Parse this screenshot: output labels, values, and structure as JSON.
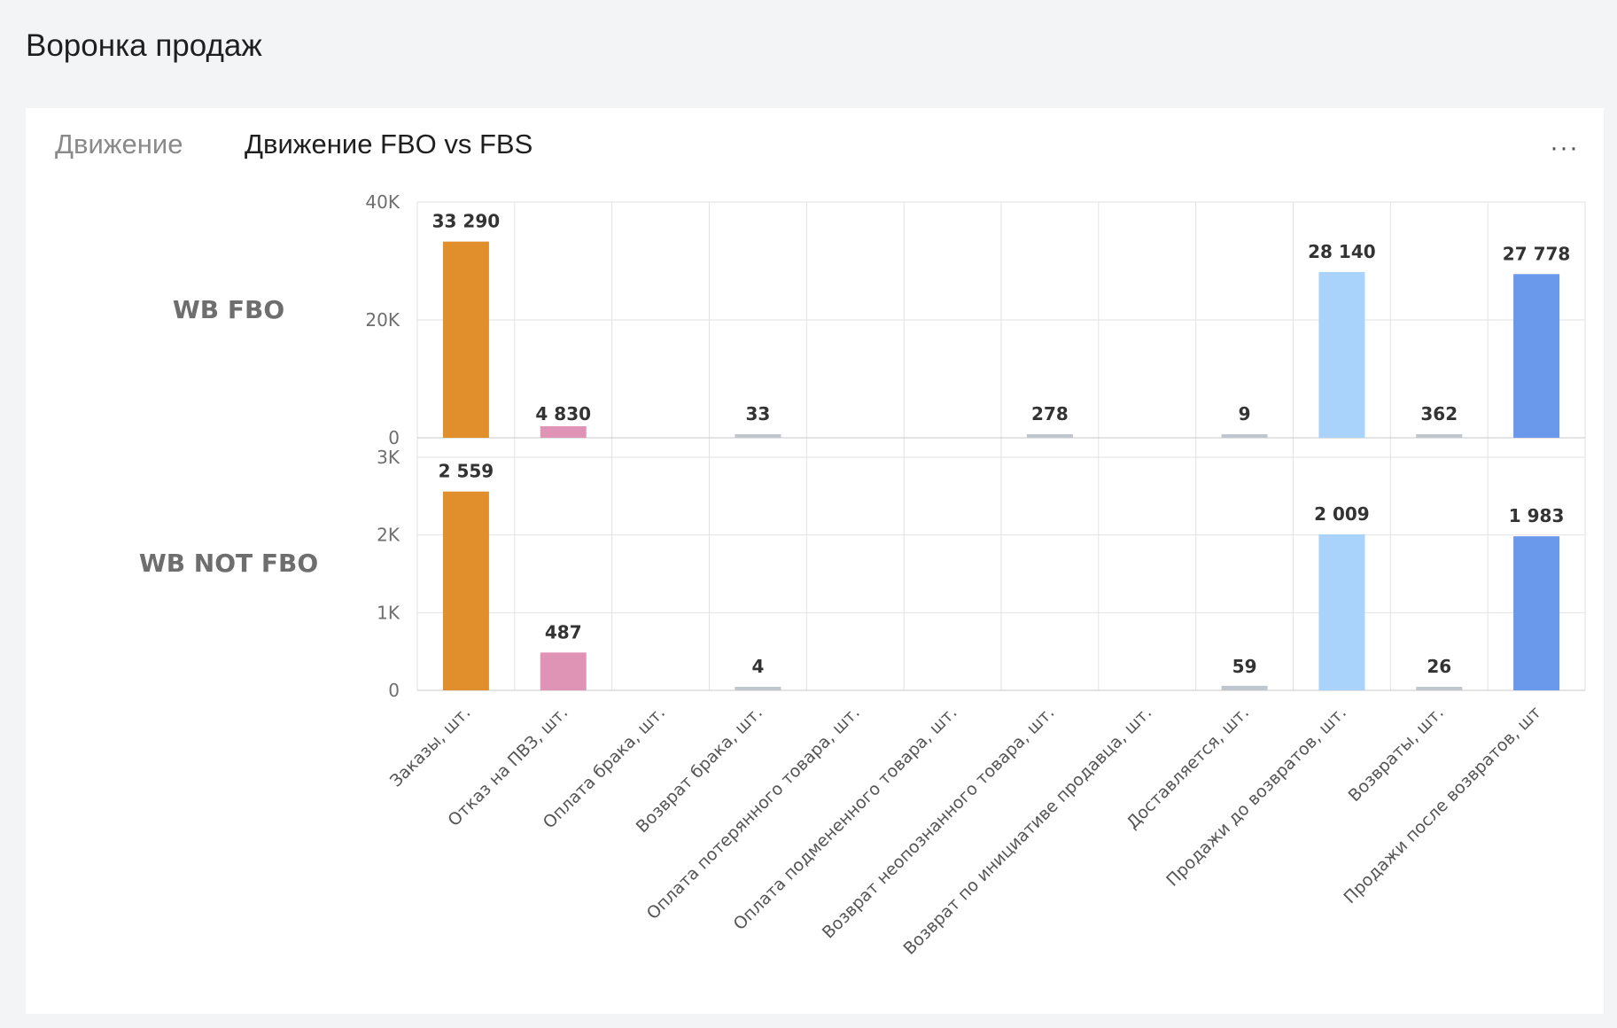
{
  "page_title": "Воронка продаж",
  "tabs": [
    {
      "label": "Движение",
      "active": false
    },
    {
      "label": "Движение FBO vs FBS",
      "active": true
    }
  ],
  "menu_icon": "more-horizontal-icon",
  "menu_label": "···",
  "chart_data": {
    "type": "bar",
    "categories": [
      "Заказы, шт.",
      "Отказ на ПВЗ, шт.",
      "Оплата брака, шт.",
      "Возврат брака, шт.",
      "Оплата потерянного товара, шт.",
      "Оплата подмененного товара, шт.",
      "Возврат неопознанного товара, шт.",
      "Возврат по инициативе продавца, шт.",
      "Доставляется, шт.",
      "Продажи до возвратов, шт.",
      "Возвраты, шт.",
      "Продажи после возвратов, шт"
    ],
    "bar_colors": [
      "#e08f2c",
      "#e094b5",
      "#bfc6ce",
      "#bfc6ce",
      "#bfc6ce",
      "#bfc6ce",
      "#bfc6ce",
      "#bfc6ce",
      "#bfc6ce",
      "#a9d3fb",
      "#bfc6ce",
      "#6a98ea"
    ],
    "panels": [
      {
        "row_label": "WB FBO",
        "ylim": [
          0,
          40000
        ],
        "yticks": [
          0,
          20000,
          40000
        ],
        "ytick_labels": [
          "0",
          "20K",
          "40K"
        ],
        "values": [
          33290,
          4830,
          null,
          33,
          null,
          null,
          278,
          null,
          9,
          28140,
          362,
          27778
        ],
        "value_labels": [
          "33 290",
          "4 830",
          "",
          "33",
          "",
          "",
          "278",
          "",
          "9",
          "28 140",
          "362",
          "27 778"
        ]
      },
      {
        "row_label": "WB NOT FBO",
        "ylim": [
          0,
          3000
        ],
        "yticks": [
          0,
          1000,
          2000,
          3000
        ],
        "ytick_labels": [
          "0",
          "1K",
          "2K",
          "3K"
        ],
        "values": [
          2559,
          487,
          null,
          4,
          null,
          null,
          null,
          null,
          59,
          2009,
          26,
          1983
        ],
        "value_labels": [
          "2 559",
          "487",
          "",
          "4",
          "",
          "",
          "",
          "",
          "59",
          "2 009",
          "26",
          "1 983"
        ]
      }
    ],
    "grid": true
  }
}
